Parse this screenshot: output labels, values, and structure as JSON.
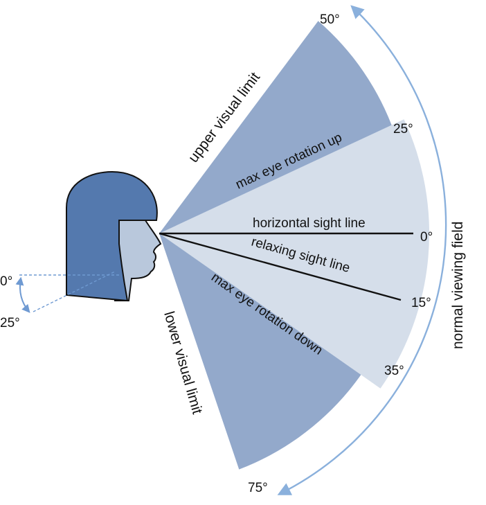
{
  "colors": {
    "outer_sector": "#93a9cb",
    "inner_sector": "#d5deea",
    "hair": "#5479ae",
    "face": "#b9c8dc",
    "arc": "#8ab0dc",
    "line": "#111111"
  },
  "angles": {
    "upper_limit": "50°",
    "max_up": "25°",
    "horizontal": "0°",
    "relaxing": "15°",
    "max_down": "35°",
    "lower_limit": "75°"
  },
  "labels": {
    "upper_visual_limit": "upper visual limit",
    "max_eye_rotation_up": "max eye rotation up",
    "horizontal_sight_line": "horizontal sight line",
    "relaxing_sight_line": "relaxing sight line",
    "max_eye_rotation_down": "max eye rotation down",
    "lower_visual_limit": "lower visual limit",
    "normal_viewing_field": "normal viewing field"
  },
  "head_tilt": {
    "upright": "0°",
    "tilted": "25°"
  }
}
